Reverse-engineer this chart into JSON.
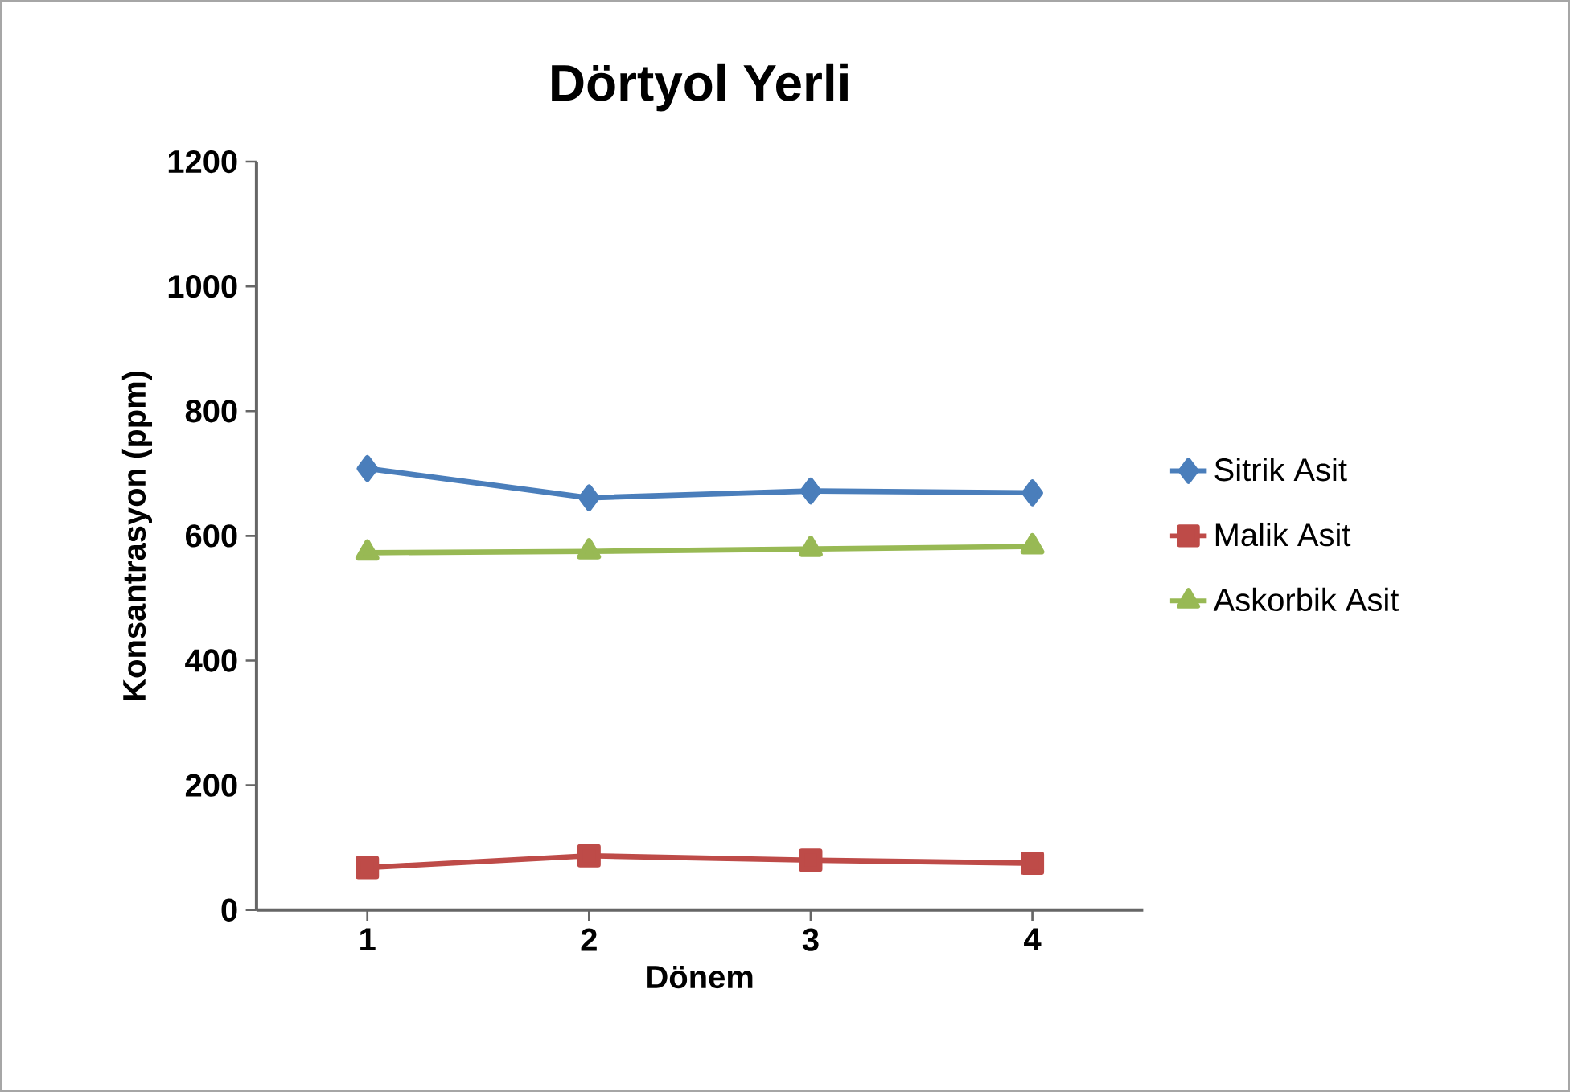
{
  "chart_data": {
    "type": "line",
    "title": "Dörtyol Yerli",
    "xlabel": "Dönem",
    "ylabel": "Konsantrasyon (ppm)",
    "categories": [
      "1",
      "2",
      "3",
      "4"
    ],
    "ylim": [
      0,
      1200
    ],
    "yticks": [
      0,
      200,
      400,
      600,
      800,
      1000,
      1200
    ],
    "grid": false,
    "legend": "right",
    "series": [
      {
        "name": "Sitrik Asit",
        "color": "#4a7ebb",
        "marker": "diamond",
        "values": [
          708,
          661,
          672,
          669
        ]
      },
      {
        "name": "Malik Asit",
        "color": "#be4b48",
        "marker": "square",
        "values": [
          68,
          87,
          80,
          75
        ]
      },
      {
        "name": "Askorbik Asit",
        "color": "#98b954",
        "marker": "triangle",
        "values": [
          573,
          575,
          579,
          583
        ]
      }
    ]
  }
}
